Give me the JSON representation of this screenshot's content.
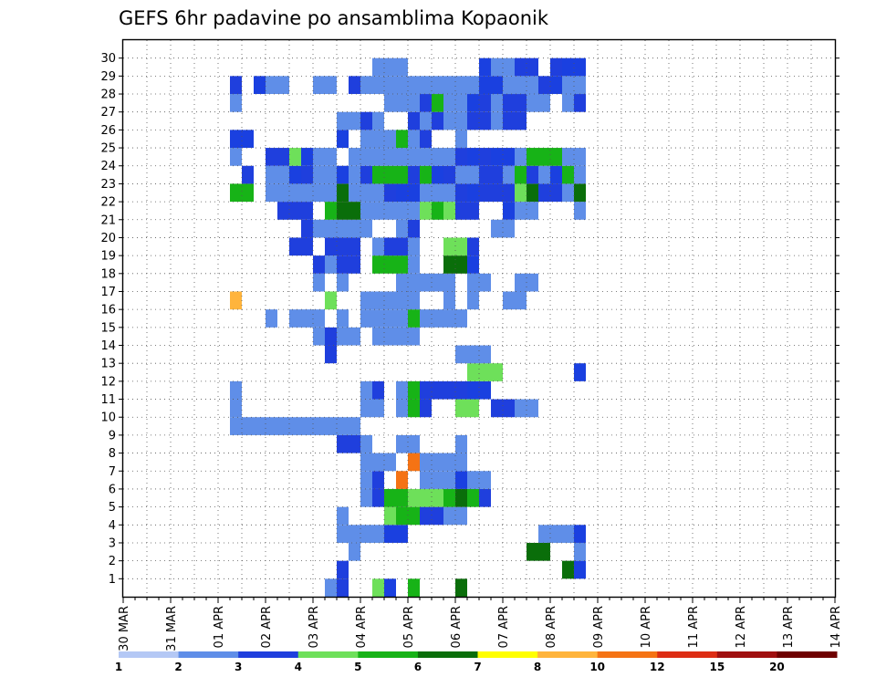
{
  "chart_data": {
    "type": "heatmap",
    "title": "GEFS 6hr padavine po ansamblima Kopaonik",
    "x_tick_labels": [
      "30 MAR",
      "31 MAR",
      "01 APR",
      "02 APR",
      "03 APR",
      "04 APR",
      "05 APR",
      "06 APR",
      "07 APR",
      "08 APR",
      "09 APR",
      "10 APR",
      "11 APR",
      "12 APR",
      "13 APR",
      "14 APR"
    ],
    "y_tick_labels": [
      "1",
      "2",
      "3",
      "4",
      "5",
      "6",
      "7",
      "8",
      "9",
      "10",
      "11",
      "12",
      "13",
      "14",
      "15",
      "16",
      "17",
      "18",
      "19",
      "20",
      "21",
      "22",
      "23",
      "24",
      "25",
      "26",
      "27",
      "28",
      "29",
      "30"
    ],
    "x_range_days": [
      0,
      15
    ],
    "steps_per_day": 4,
    "members": 31,
    "grid": true,
    "colorbar": {
      "levels": [
        "1",
        "2",
        "3",
        "4",
        "5",
        "6",
        "7",
        "8",
        "10",
        "12",
        "15",
        "20"
      ],
      "colors": [
        "#b4c8f5",
        "#5f8ee8",
        "#1f3fdd",
        "#1a40e0",
        "#6ee05a",
        "#17b317",
        "#0a6e0a",
        "#ffff00",
        "#ffb43c",
        "#f57314",
        "#dd2d14",
        "#a01010",
        "#6e0000"
      ]
    },
    "cells": [
      [
        0,
        8,
        1
      ],
      [
        0,
        9,
        2
      ],
      [
        0,
        12,
        4
      ],
      [
        0,
        13,
        3
      ],
      [
        0,
        15,
        5
      ],
      [
        0,
        19,
        6
      ],
      [
        1,
        9,
        2
      ],
      [
        1,
        29,
        3
      ],
      [
        1,
        28,
        6
      ],
      [
        2,
        10,
        1
      ],
      [
        2,
        29,
        1
      ],
      [
        2,
        25,
        6
      ],
      [
        2,
        26,
        6
      ],
      [
        3,
        9,
        1
      ],
      [
        3,
        10,
        1
      ],
      [
        3,
        11,
        1
      ],
      [
        3,
        12,
        1
      ],
      [
        3,
        13,
        3
      ],
      [
        3,
        14,
        3
      ],
      [
        3,
        26,
        1
      ],
      [
        3,
        27,
        1
      ],
      [
        3,
        28,
        1
      ],
      [
        3,
        29,
        3
      ],
      [
        4,
        9,
        1
      ],
      [
        4,
        13,
        4
      ],
      [
        4,
        14,
        5
      ],
      [
        4,
        15,
        5
      ],
      [
        4,
        16,
        2
      ],
      [
        4,
        17,
        2
      ],
      [
        4,
        18,
        1
      ],
      [
        4,
        19,
        1
      ],
      [
        5,
        11,
        1
      ],
      [
        5,
        12,
        2
      ],
      [
        5,
        13,
        5
      ],
      [
        5,
        14,
        5
      ],
      [
        5,
        15,
        4
      ],
      [
        5,
        16,
        4
      ],
      [
        5,
        17,
        4
      ],
      [
        5,
        18,
        5
      ],
      [
        5,
        19,
        6
      ],
      [
        5,
        20,
        5
      ],
      [
        5,
        21,
        2
      ],
      [
        6,
        11,
        1
      ],
      [
        6,
        12,
        2
      ],
      [
        6,
        14,
        9
      ],
      [
        6,
        16,
        1
      ],
      [
        6,
        17,
        1
      ],
      [
        6,
        18,
        1
      ],
      [
        6,
        19,
        3
      ],
      [
        6,
        20,
        1
      ],
      [
        6,
        21,
        1
      ],
      [
        7,
        11,
        1
      ],
      [
        7,
        12,
        1
      ],
      [
        7,
        13,
        1
      ],
      [
        7,
        15,
        9
      ],
      [
        7,
        16,
        1
      ],
      [
        7,
        17,
        1
      ],
      [
        7,
        18,
        1
      ],
      [
        7,
        19,
        1
      ],
      [
        8,
        9,
        2
      ],
      [
        8,
        10,
        2
      ],
      [
        8,
        11,
        1
      ],
      [
        8,
        14,
        1
      ],
      [
        8,
        15,
        1
      ],
      [
        8,
        19,
        1
      ],
      [
        9,
        0,
        1
      ],
      [
        9,
        1,
        1
      ],
      [
        9,
        2,
        1
      ],
      [
        9,
        3,
        1
      ],
      [
        9,
        4,
        1
      ],
      [
        9,
        5,
        1
      ],
      [
        9,
        6,
        1
      ],
      [
        9,
        7,
        1
      ],
      [
        9,
        8,
        1
      ],
      [
        9,
        9,
        1
      ],
      [
        9,
        10,
        1
      ],
      [
        10,
        0,
        1
      ],
      [
        10,
        11,
        1
      ],
      [
        10,
        12,
        1
      ],
      [
        10,
        14,
        1
      ],
      [
        10,
        15,
        5
      ],
      [
        10,
        16,
        2
      ],
      [
        10,
        19,
        4
      ],
      [
        10,
        20,
        4
      ],
      [
        10,
        22,
        2
      ],
      [
        10,
        23,
        2
      ],
      [
        10,
        24,
        1
      ],
      [
        10,
        25,
        1
      ],
      [
        11,
        0,
        1
      ],
      [
        11,
        11,
        1
      ],
      [
        11,
        12,
        2
      ],
      [
        11,
        14,
        1
      ],
      [
        11,
        15,
        5
      ],
      [
        11,
        16,
        2
      ],
      [
        11,
        17,
        2
      ],
      [
        11,
        18,
        2
      ],
      [
        11,
        19,
        2
      ],
      [
        11,
        20,
        3
      ],
      [
        11,
        21,
        3
      ],
      [
        12,
        20,
        4
      ],
      [
        12,
        21,
        4
      ],
      [
        12,
        22,
        4
      ],
      [
        12,
        29,
        3
      ],
      [
        13,
        8,
        2
      ],
      [
        13,
        19,
        1
      ],
      [
        13,
        20,
        1
      ],
      [
        13,
        21,
        1
      ],
      [
        14,
        7,
        1
      ],
      [
        14,
        8,
        2
      ],
      [
        14,
        9,
        1
      ],
      [
        14,
        10,
        1
      ],
      [
        14,
        12,
        1
      ],
      [
        14,
        13,
        1
      ],
      [
        14,
        14,
        1
      ],
      [
        14,
        15,
        1
      ],
      [
        15,
        3,
        1
      ],
      [
        15,
        5,
        1
      ],
      [
        15,
        6,
        1
      ],
      [
        15,
        7,
        1
      ],
      [
        15,
        9,
        1
      ],
      [
        15,
        11,
        1
      ],
      [
        15,
        12,
        1
      ],
      [
        15,
        13,
        1
      ],
      [
        15,
        14,
        1
      ],
      [
        15,
        15,
        5
      ],
      [
        15,
        16,
        1
      ],
      [
        15,
        17,
        1
      ],
      [
        15,
        18,
        1
      ],
      [
        15,
        19,
        1
      ],
      [
        16,
        0,
        8
      ],
      [
        16,
        8,
        4
      ],
      [
        16,
        11,
        1
      ],
      [
        16,
        12,
        1
      ],
      [
        16,
        13,
        1
      ],
      [
        16,
        14,
        1
      ],
      [
        16,
        15,
        1
      ],
      [
        16,
        18,
        1
      ],
      [
        16,
        20,
        1
      ],
      [
        16,
        23,
        1
      ],
      [
        16,
        24,
        1
      ],
      [
        17,
        7,
        1
      ],
      [
        17,
        9,
        1
      ],
      [
        17,
        14,
        1
      ],
      [
        17,
        15,
        1
      ],
      [
        17,
        16,
        1
      ],
      [
        17,
        17,
        1
      ],
      [
        17,
        18,
        1
      ],
      [
        17,
        20,
        1
      ],
      [
        17,
        21,
        1
      ],
      [
        17,
        24,
        1
      ],
      [
        17,
        25,
        1
      ],
      [
        18,
        7,
        2
      ],
      [
        18,
        8,
        1
      ],
      [
        18,
        9,
        2
      ],
      [
        18,
        10,
        2
      ],
      [
        18,
        12,
        5
      ],
      [
        18,
        13,
        5
      ],
      [
        18,
        14,
        5
      ],
      [
        18,
        15,
        1
      ],
      [
        18,
        18,
        6
      ],
      [
        18,
        19,
        6
      ],
      [
        18,
        20,
        3
      ],
      [
        19,
        5,
        2
      ],
      [
        19,
        6,
        2
      ],
      [
        19,
        8,
        2
      ],
      [
        19,
        9,
        2
      ],
      [
        19,
        10,
        2
      ],
      [
        19,
        12,
        1
      ],
      [
        19,
        13,
        2
      ],
      [
        19,
        14,
        2
      ],
      [
        19,
        15,
        1
      ],
      [
        19,
        18,
        4
      ],
      [
        19,
        19,
        4
      ],
      [
        19,
        20,
        2
      ],
      [
        20,
        6,
        2
      ],
      [
        20,
        7,
        1
      ],
      [
        20,
        8,
        1
      ],
      [
        20,
        9,
        1
      ],
      [
        20,
        10,
        1
      ],
      [
        20,
        11,
        1
      ],
      [
        20,
        14,
        1
      ],
      [
        20,
        15,
        2
      ],
      [
        20,
        22,
        1
      ],
      [
        20,
        23,
        1
      ],
      [
        21,
        4,
        2
      ],
      [
        21,
        5,
        2
      ],
      [
        21,
        6,
        2
      ],
      [
        21,
        8,
        5
      ],
      [
        21,
        9,
        6
      ],
      [
        21,
        10,
        6
      ],
      [
        21,
        11,
        1
      ],
      [
        21,
        12,
        1
      ],
      [
        21,
        13,
        1
      ],
      [
        21,
        14,
        1
      ],
      [
        21,
        15,
        1
      ],
      [
        21,
        16,
        4
      ],
      [
        21,
        17,
        5
      ],
      [
        21,
        18,
        4
      ],
      [
        21,
        19,
        2
      ],
      [
        21,
        20,
        2
      ],
      [
        21,
        23,
        3
      ],
      [
        21,
        24,
        1
      ],
      [
        21,
        25,
        1
      ],
      [
        21,
        29,
        1
      ],
      [
        22,
        0,
        5
      ],
      [
        22,
        1,
        5
      ],
      [
        22,
        3,
        1
      ],
      [
        22,
        4,
        1
      ],
      [
        22,
        5,
        1
      ],
      [
        22,
        6,
        1
      ],
      [
        22,
        7,
        1
      ],
      [
        22,
        8,
        1
      ],
      [
        22,
        9,
        6
      ],
      [
        22,
        10,
        1
      ],
      [
        22,
        11,
        1
      ],
      [
        22,
        12,
        1
      ],
      [
        22,
        13,
        2
      ],
      [
        22,
        14,
        3
      ],
      [
        22,
        15,
        3
      ],
      [
        22,
        16,
        1
      ],
      [
        22,
        17,
        1
      ],
      [
        22,
        18,
        1
      ],
      [
        22,
        19,
        2
      ],
      [
        22,
        20,
        3
      ],
      [
        22,
        21,
        2
      ],
      [
        22,
        22,
        2
      ],
      [
        22,
        23,
        2
      ],
      [
        22,
        24,
        4
      ],
      [
        22,
        25,
        6
      ],
      [
        22,
        26,
        2
      ],
      [
        22,
        27,
        2
      ],
      [
        22,
        28,
        1
      ],
      [
        22,
        29,
        6
      ],
      [
        23,
        1,
        2
      ],
      [
        23,
        3,
        1
      ],
      [
        23,
        4,
        1
      ],
      [
        23,
        5,
        3
      ],
      [
        23,
        6,
        2
      ],
      [
        23,
        7,
        1
      ],
      [
        23,
        8,
        1
      ],
      [
        23,
        9,
        3
      ],
      [
        23,
        10,
        1
      ],
      [
        23,
        11,
        2
      ],
      [
        23,
        12,
        5
      ],
      [
        23,
        13,
        5
      ],
      [
        23,
        14,
        5
      ],
      [
        23,
        15,
        2
      ],
      [
        23,
        16,
        5
      ],
      [
        23,
        17,
        3
      ],
      [
        23,
        18,
        2
      ],
      [
        23,
        19,
        1
      ],
      [
        23,
        20,
        1
      ],
      [
        23,
        21,
        2
      ],
      [
        23,
        22,
        2
      ],
      [
        23,
        23,
        1
      ],
      [
        23,
        24,
        5
      ],
      [
        23,
        25,
        2
      ],
      [
        23,
        26,
        1
      ],
      [
        23,
        27,
        3
      ],
      [
        23,
        28,
        5
      ],
      [
        23,
        29,
        1
      ],
      [
        24,
        0,
        1
      ],
      [
        24,
        3,
        2
      ],
      [
        24,
        4,
        2
      ],
      [
        24,
        5,
        4
      ],
      [
        24,
        6,
        3
      ],
      [
        24,
        7,
        1
      ],
      [
        24,
        8,
        1
      ],
      [
        24,
        10,
        1
      ],
      [
        24,
        11,
        1
      ],
      [
        24,
        12,
        1
      ],
      [
        24,
        13,
        1
      ],
      [
        24,
        14,
        1
      ],
      [
        24,
        15,
        1
      ],
      [
        24,
        16,
        1
      ],
      [
        24,
        17,
        1
      ],
      [
        24,
        18,
        1
      ],
      [
        24,
        19,
        2
      ],
      [
        24,
        20,
        3
      ],
      [
        24,
        21,
        2
      ],
      [
        24,
        22,
        3
      ],
      [
        24,
        23,
        3
      ],
      [
        24,
        24,
        1
      ],
      [
        24,
        25,
        5
      ],
      [
        24,
        26,
        5
      ],
      [
        24,
        27,
        5
      ],
      [
        24,
        28,
        1
      ],
      [
        24,
        29,
        1
      ],
      [
        25,
        0,
        3
      ],
      [
        25,
        1,
        3
      ],
      [
        25,
        9,
        3
      ],
      [
        25,
        11,
        1
      ],
      [
        25,
        12,
        1
      ],
      [
        25,
        13,
        1
      ],
      [
        25,
        14,
        5
      ],
      [
        25,
        15,
        1
      ],
      [
        25,
        16,
        2
      ],
      [
        25,
        19,
        1
      ],
      [
        26,
        9,
        1
      ],
      [
        26,
        10,
        1
      ],
      [
        26,
        11,
        2
      ],
      [
        26,
        12,
        1
      ],
      [
        26,
        15,
        2
      ],
      [
        26,
        16,
        1
      ],
      [
        26,
        17,
        2
      ],
      [
        26,
        18,
        1
      ],
      [
        26,
        19,
        1
      ],
      [
        26,
        20,
        2
      ],
      [
        26,
        21,
        2
      ],
      [
        26,
        22,
        1
      ],
      [
        26,
        23,
        2
      ],
      [
        26,
        24,
        2
      ],
      [
        27,
        0,
        1
      ],
      [
        27,
        13,
        1
      ],
      [
        27,
        14,
        1
      ],
      [
        27,
        15,
        1
      ],
      [
        27,
        16,
        2
      ],
      [
        27,
        17,
        5
      ],
      [
        27,
        18,
        1
      ],
      [
        27,
        19,
        1
      ],
      [
        27,
        20,
        3
      ],
      [
        27,
        21,
        2
      ],
      [
        27,
        22,
        1
      ],
      [
        27,
        23,
        2
      ],
      [
        27,
        24,
        2
      ],
      [
        27,
        25,
        1
      ],
      [
        27,
        26,
        1
      ],
      [
        27,
        28,
        1
      ],
      [
        27,
        29,
        2
      ],
      [
        28,
        0,
        2
      ],
      [
        28,
        2,
        3
      ],
      [
        28,
        3,
        1
      ],
      [
        28,
        4,
        1
      ],
      [
        28,
        7,
        1
      ],
      [
        28,
        8,
        1
      ],
      [
        28,
        10,
        2
      ],
      [
        28,
        11,
        1
      ],
      [
        28,
        12,
        1
      ],
      [
        28,
        13,
        1
      ],
      [
        28,
        14,
        1
      ],
      [
        28,
        15,
        1
      ],
      [
        28,
        16,
        1
      ],
      [
        28,
        17,
        1
      ],
      [
        28,
        18,
        1
      ],
      [
        28,
        19,
        1
      ],
      [
        28,
        20,
        1
      ],
      [
        28,
        21,
        3
      ],
      [
        28,
        22,
        3
      ],
      [
        28,
        23,
        1
      ],
      [
        28,
        24,
        1
      ],
      [
        28,
        25,
        1
      ],
      [
        28,
        26,
        2
      ],
      [
        28,
        27,
        3
      ],
      [
        28,
        28,
        1
      ],
      [
        28,
        29,
        1
      ],
      [
        29,
        12,
        1
      ],
      [
        29,
        13,
        1
      ],
      [
        29,
        14,
        1
      ],
      [
        29,
        21,
        3
      ],
      [
        29,
        22,
        1
      ],
      [
        29,
        23,
        1
      ],
      [
        29,
        24,
        2
      ],
      [
        29,
        25,
        2
      ],
      [
        29,
        27,
        2
      ],
      [
        29,
        28,
        3
      ],
      [
        29,
        29,
        3
      ]
    ]
  }
}
